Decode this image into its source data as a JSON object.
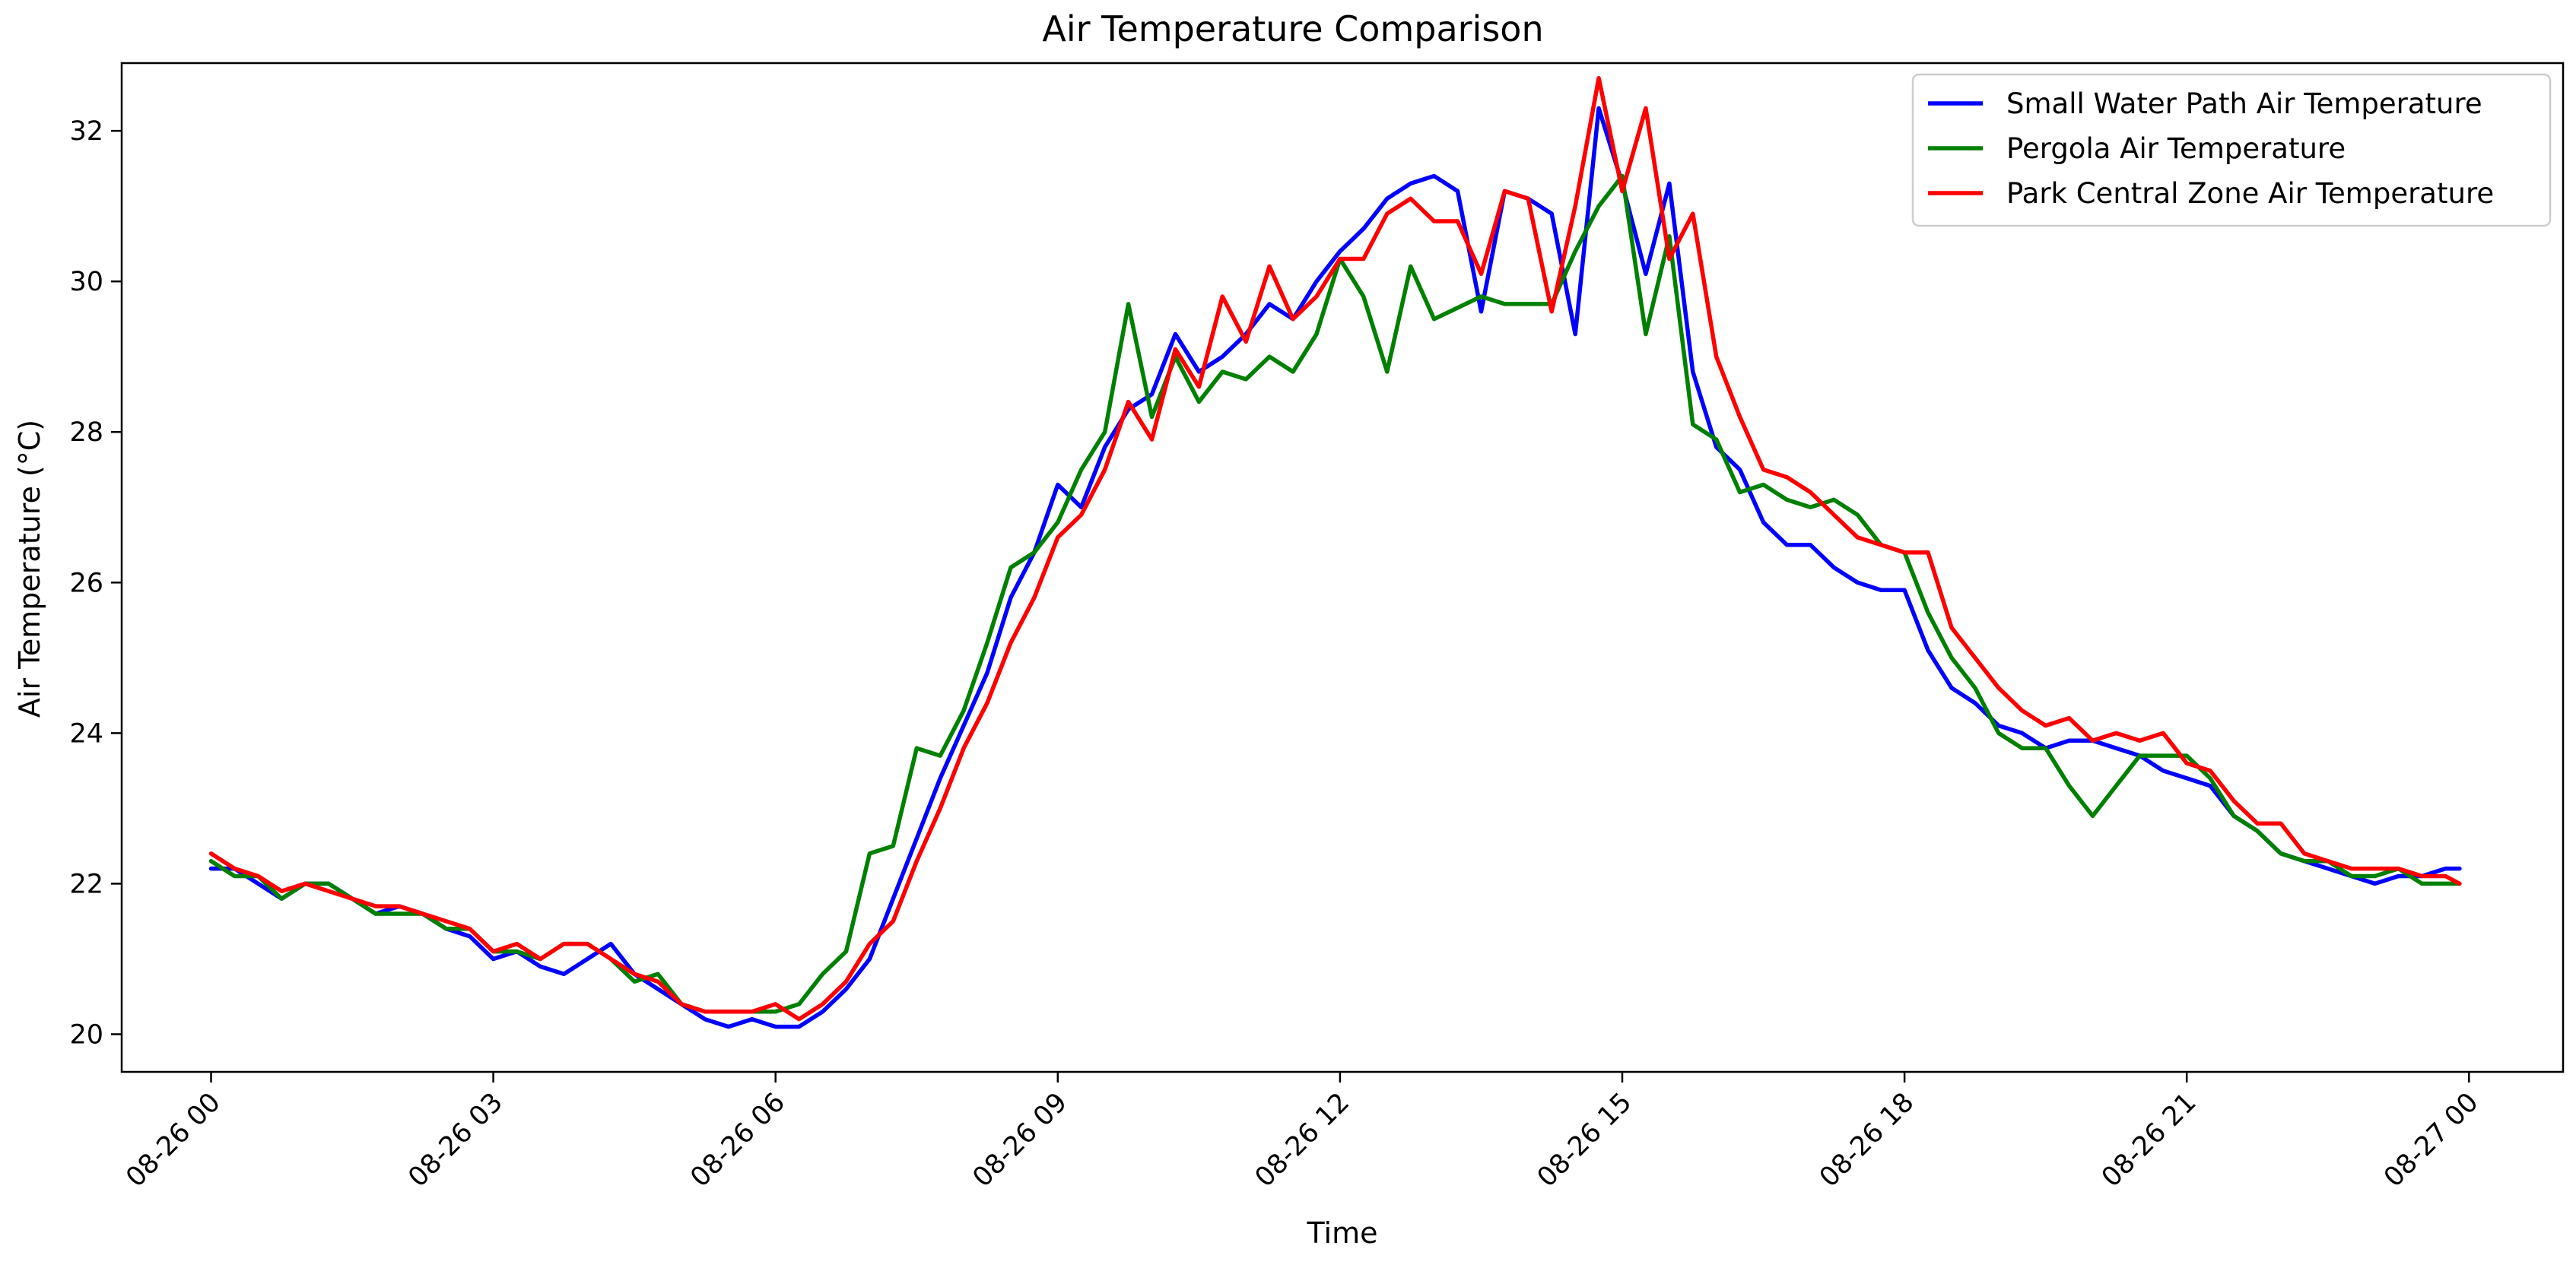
{
  "chart_data": {
    "type": "line",
    "title": "Air Temperature Comparison",
    "xlabel": "Time",
    "ylabel": "Air Temperature (°C)",
    "x_unit": "hours since 08-26 00:00",
    "xlim": [
      -0.95,
      25.0
    ],
    "ylim": [
      19.5,
      32.9
    ],
    "xticks": [
      {
        "value": 0,
        "label": "08-26 00"
      },
      {
        "value": 3,
        "label": "08-26 03"
      },
      {
        "value": 6,
        "label": "08-26 06"
      },
      {
        "value": 9,
        "label": "08-26 09"
      },
      {
        "value": 12,
        "label": "08-26 12"
      },
      {
        "value": 15,
        "label": "08-26 15"
      },
      {
        "value": 18,
        "label": "08-26 18"
      },
      {
        "value": 21,
        "label": "08-26 21"
      },
      {
        "value": 24,
        "label": "08-27 00"
      }
    ],
    "yticks": [
      20,
      22,
      24,
      26,
      28,
      30,
      32
    ],
    "grid": false,
    "legend_position": "top-right",
    "series": [
      {
        "name": "Small Water Path Air Temperature",
        "color": "#0000ff",
        "points": [
          [
            0,
            22.2
          ],
          [
            0.25,
            22.2
          ],
          [
            0.5,
            22.0
          ],
          [
            0.75,
            21.8
          ],
          [
            1.0,
            22.0
          ],
          [
            1.25,
            22.0
          ],
          [
            1.5,
            21.8
          ],
          [
            1.75,
            21.6
          ],
          [
            2.0,
            21.7
          ],
          [
            2.25,
            21.6
          ],
          [
            2.5,
            21.4
          ],
          [
            2.75,
            21.3
          ],
          [
            3.0,
            21.0
          ],
          [
            3.25,
            21.1
          ],
          [
            3.5,
            20.9
          ],
          [
            3.75,
            20.8
          ],
          [
            4.0,
            21.0
          ],
          [
            4.25,
            21.2
          ],
          [
            4.5,
            20.8
          ],
          [
            4.75,
            20.6
          ],
          [
            5.0,
            20.4
          ],
          [
            5.25,
            20.2
          ],
          [
            5.5,
            20.1
          ],
          [
            5.75,
            20.2
          ],
          [
            6.0,
            20.1
          ],
          [
            6.25,
            20.1
          ],
          [
            6.5,
            20.3
          ],
          [
            6.75,
            20.6
          ],
          [
            7.0,
            21.0
          ],
          [
            7.25,
            21.8
          ],
          [
            7.5,
            22.6
          ],
          [
            7.75,
            23.4
          ],
          [
            8.0,
            24.1
          ],
          [
            8.25,
            24.8
          ],
          [
            8.5,
            25.8
          ],
          [
            8.75,
            26.4
          ],
          [
            9.0,
            27.3
          ],
          [
            9.25,
            27.0
          ],
          [
            9.5,
            27.8
          ],
          [
            9.75,
            28.3
          ],
          [
            10.0,
            28.5
          ],
          [
            10.25,
            29.3
          ],
          [
            10.5,
            28.8
          ],
          [
            10.75,
            29.0
          ],
          [
            11.0,
            29.3
          ],
          [
            11.25,
            29.7
          ],
          [
            11.5,
            29.5
          ],
          [
            11.75,
            30.0
          ],
          [
            12.0,
            30.4
          ],
          [
            12.25,
            30.7
          ],
          [
            12.5,
            31.1
          ],
          [
            12.75,
            31.3
          ],
          [
            13.0,
            31.4
          ],
          [
            13.25,
            31.2
          ],
          [
            13.5,
            29.6
          ],
          [
            13.75,
            31.2
          ],
          [
            14.0,
            31.1
          ],
          [
            14.25,
            30.9
          ],
          [
            14.5,
            29.3
          ],
          [
            14.75,
            32.3
          ],
          [
            15.0,
            31.3
          ],
          [
            15.25,
            30.1
          ],
          [
            15.5,
            31.3
          ],
          [
            15.75,
            28.8
          ],
          [
            16.0,
            27.8
          ],
          [
            16.25,
            27.5
          ],
          [
            16.5,
            26.8
          ],
          [
            16.75,
            26.5
          ],
          [
            17.0,
            26.5
          ],
          [
            17.25,
            26.2
          ],
          [
            17.5,
            26.0
          ],
          [
            17.75,
            25.9
          ],
          [
            18.0,
            25.9
          ],
          [
            18.25,
            25.1
          ],
          [
            18.5,
            24.6
          ],
          [
            18.75,
            24.4
          ],
          [
            19.0,
            24.1
          ],
          [
            19.25,
            24.0
          ],
          [
            19.5,
            23.8
          ],
          [
            19.75,
            23.9
          ],
          [
            20.0,
            23.9
          ],
          [
            20.25,
            23.8
          ],
          [
            20.5,
            23.7
          ],
          [
            20.75,
            23.5
          ],
          [
            21.0,
            23.4
          ],
          [
            21.25,
            23.3
          ],
          [
            21.5,
            22.9
          ],
          [
            21.75,
            22.7
          ],
          [
            22.0,
            22.4
          ],
          [
            22.25,
            22.3
          ],
          [
            22.5,
            22.2
          ],
          [
            22.75,
            22.1
          ],
          [
            23.0,
            22.0
          ],
          [
            23.25,
            22.1
          ],
          [
            23.5,
            22.1
          ],
          [
            23.75,
            22.2
          ],
          [
            23.9,
            22.2
          ]
        ]
      },
      {
        "name": "Pergola Air Temperature",
        "color": "#008000",
        "points": [
          [
            0,
            22.3
          ],
          [
            0.25,
            22.1
          ],
          [
            0.5,
            22.1
          ],
          [
            0.75,
            21.8
          ],
          [
            1.0,
            22.0
          ],
          [
            1.25,
            22.0
          ],
          [
            1.5,
            21.8
          ],
          [
            1.75,
            21.6
          ],
          [
            2.0,
            21.6
          ],
          [
            2.25,
            21.6
          ],
          [
            2.5,
            21.4
          ],
          [
            2.75,
            21.4
          ],
          [
            3.0,
            21.1
          ],
          [
            3.25,
            21.1
          ],
          [
            3.5,
            21.0
          ],
          [
            3.75,
            21.2
          ],
          [
            4.0,
            21.2
          ],
          [
            4.25,
            21.0
          ],
          [
            4.5,
            20.7
          ],
          [
            4.75,
            20.8
          ],
          [
            5.0,
            20.4
          ],
          [
            5.25,
            20.3
          ],
          [
            5.5,
            20.3
          ],
          [
            5.75,
            20.3
          ],
          [
            6.0,
            20.3
          ],
          [
            6.25,
            20.4
          ],
          [
            6.5,
            20.8
          ],
          [
            6.75,
            21.1
          ],
          [
            7.0,
            22.4
          ],
          [
            7.25,
            22.5
          ],
          [
            7.5,
            23.8
          ],
          [
            7.75,
            23.7
          ],
          [
            8.0,
            24.3
          ],
          [
            8.25,
            25.2
          ],
          [
            8.5,
            26.2
          ],
          [
            8.75,
            26.4
          ],
          [
            9.0,
            26.8
          ],
          [
            9.25,
            27.5
          ],
          [
            9.5,
            28.0
          ],
          [
            9.75,
            29.7
          ],
          [
            10.0,
            28.2
          ],
          [
            10.25,
            29.0
          ],
          [
            10.5,
            28.4
          ],
          [
            10.75,
            28.8
          ],
          [
            11.0,
            28.7
          ],
          [
            11.25,
            29.0
          ],
          [
            11.5,
            28.8
          ],
          [
            11.75,
            29.3
          ],
          [
            12.0,
            30.3
          ],
          [
            12.25,
            29.8
          ],
          [
            12.5,
            28.8
          ],
          [
            12.75,
            30.2
          ],
          [
            13.0,
            29.5
          ],
          [
            13.5,
            29.8
          ],
          [
            13.75,
            29.7
          ],
          [
            14.0,
            29.7
          ],
          [
            14.25,
            29.7
          ],
          [
            14.5,
            30.4
          ],
          [
            14.75,
            31.0
          ],
          [
            15.0,
            31.4
          ],
          [
            15.25,
            29.3
          ],
          [
            15.5,
            30.6
          ],
          [
            15.75,
            28.1
          ],
          [
            16.0,
            27.9
          ],
          [
            16.25,
            27.2
          ],
          [
            16.5,
            27.3
          ],
          [
            16.75,
            27.1
          ],
          [
            17.0,
            27.0
          ],
          [
            17.25,
            27.1
          ],
          [
            17.5,
            26.9
          ],
          [
            17.75,
            26.5
          ],
          [
            18.0,
            26.4
          ],
          [
            18.25,
            25.6
          ],
          [
            18.5,
            25.0
          ],
          [
            18.75,
            24.6
          ],
          [
            19.0,
            24.0
          ],
          [
            19.25,
            23.8
          ],
          [
            19.5,
            23.8
          ],
          [
            19.75,
            23.3
          ],
          [
            20.0,
            22.9
          ],
          [
            20.25,
            23.3
          ],
          [
            20.5,
            23.7
          ],
          [
            20.75,
            23.7
          ],
          [
            21.0,
            23.7
          ],
          [
            21.25,
            23.4
          ],
          [
            21.5,
            22.9
          ],
          [
            21.75,
            22.7
          ],
          [
            22.0,
            22.4
          ],
          [
            22.25,
            22.3
          ],
          [
            22.5,
            22.3
          ],
          [
            22.75,
            22.1
          ],
          [
            23.0,
            22.1
          ],
          [
            23.25,
            22.2
          ],
          [
            23.5,
            22.0
          ],
          [
            23.75,
            22.0
          ],
          [
            23.9,
            22.0
          ]
        ]
      },
      {
        "name": "Park Central Zone Air Temperature",
        "color": "#ff0000",
        "points": [
          [
            0,
            22.4
          ],
          [
            0.25,
            22.2
          ],
          [
            0.5,
            22.1
          ],
          [
            0.75,
            21.9
          ],
          [
            1.0,
            22.0
          ],
          [
            1.25,
            21.9
          ],
          [
            1.5,
            21.8
          ],
          [
            1.75,
            21.7
          ],
          [
            2.0,
            21.7
          ],
          [
            2.25,
            21.6
          ],
          [
            2.5,
            21.5
          ],
          [
            2.75,
            21.4
          ],
          [
            3.0,
            21.1
          ],
          [
            3.25,
            21.2
          ],
          [
            3.5,
            21.0
          ],
          [
            3.75,
            21.2
          ],
          [
            4.0,
            21.2
          ],
          [
            4.25,
            21.0
          ],
          [
            4.5,
            20.8
          ],
          [
            4.75,
            20.7
          ],
          [
            5.0,
            20.4
          ],
          [
            5.25,
            20.3
          ],
          [
            5.5,
            20.3
          ],
          [
            5.75,
            20.3
          ],
          [
            6.0,
            20.4
          ],
          [
            6.25,
            20.2
          ],
          [
            6.5,
            20.4
          ],
          [
            6.75,
            20.7
          ],
          [
            7.0,
            21.2
          ],
          [
            7.25,
            21.5
          ],
          [
            7.5,
            22.3
          ],
          [
            7.75,
            23.0
          ],
          [
            8.0,
            23.8
          ],
          [
            8.25,
            24.4
          ],
          [
            8.5,
            25.2
          ],
          [
            8.75,
            25.8
          ],
          [
            9.0,
            26.6
          ],
          [
            9.25,
            26.9
          ],
          [
            9.5,
            27.5
          ],
          [
            9.75,
            28.4
          ],
          [
            10.0,
            27.9
          ],
          [
            10.25,
            29.1
          ],
          [
            10.5,
            28.6
          ],
          [
            10.75,
            29.8
          ],
          [
            11.0,
            29.2
          ],
          [
            11.25,
            30.2
          ],
          [
            11.5,
            29.5
          ],
          [
            11.75,
            29.8
          ],
          [
            12.0,
            30.3
          ],
          [
            12.25,
            30.3
          ],
          [
            12.5,
            30.9
          ],
          [
            12.75,
            31.1
          ],
          [
            13.0,
            30.8
          ],
          [
            13.25,
            30.8
          ],
          [
            13.5,
            30.1
          ],
          [
            13.75,
            31.2
          ],
          [
            14.0,
            31.1
          ],
          [
            14.25,
            29.6
          ],
          [
            14.5,
            31.0
          ],
          [
            14.75,
            32.7
          ],
          [
            15.0,
            31.2
          ],
          [
            15.25,
            32.3
          ],
          [
            15.5,
            30.3
          ],
          [
            15.75,
            30.9
          ],
          [
            16.0,
            29.0
          ],
          [
            16.25,
            28.2
          ],
          [
            16.5,
            27.5
          ],
          [
            16.75,
            27.4
          ],
          [
            17.0,
            27.2
          ],
          [
            17.25,
            26.9
          ],
          [
            17.5,
            26.6
          ],
          [
            17.75,
            26.5
          ],
          [
            18.0,
            26.4
          ],
          [
            18.25,
            26.4
          ],
          [
            18.5,
            25.4
          ],
          [
            18.75,
            25.0
          ],
          [
            19.0,
            24.6
          ],
          [
            19.25,
            24.3
          ],
          [
            19.5,
            24.1
          ],
          [
            19.75,
            24.2
          ],
          [
            20.0,
            23.9
          ],
          [
            20.25,
            24.0
          ],
          [
            20.5,
            23.9
          ],
          [
            20.75,
            24.0
          ],
          [
            21.0,
            23.6
          ],
          [
            21.25,
            23.5
          ],
          [
            21.5,
            23.1
          ],
          [
            21.75,
            22.8
          ],
          [
            22.0,
            22.8
          ],
          [
            22.25,
            22.4
          ],
          [
            22.5,
            22.3
          ],
          [
            22.75,
            22.2
          ],
          [
            23.0,
            22.2
          ],
          [
            23.25,
            22.2
          ],
          [
            23.5,
            22.1
          ],
          [
            23.75,
            22.1
          ],
          [
            23.9,
            22.0
          ]
        ]
      }
    ]
  }
}
